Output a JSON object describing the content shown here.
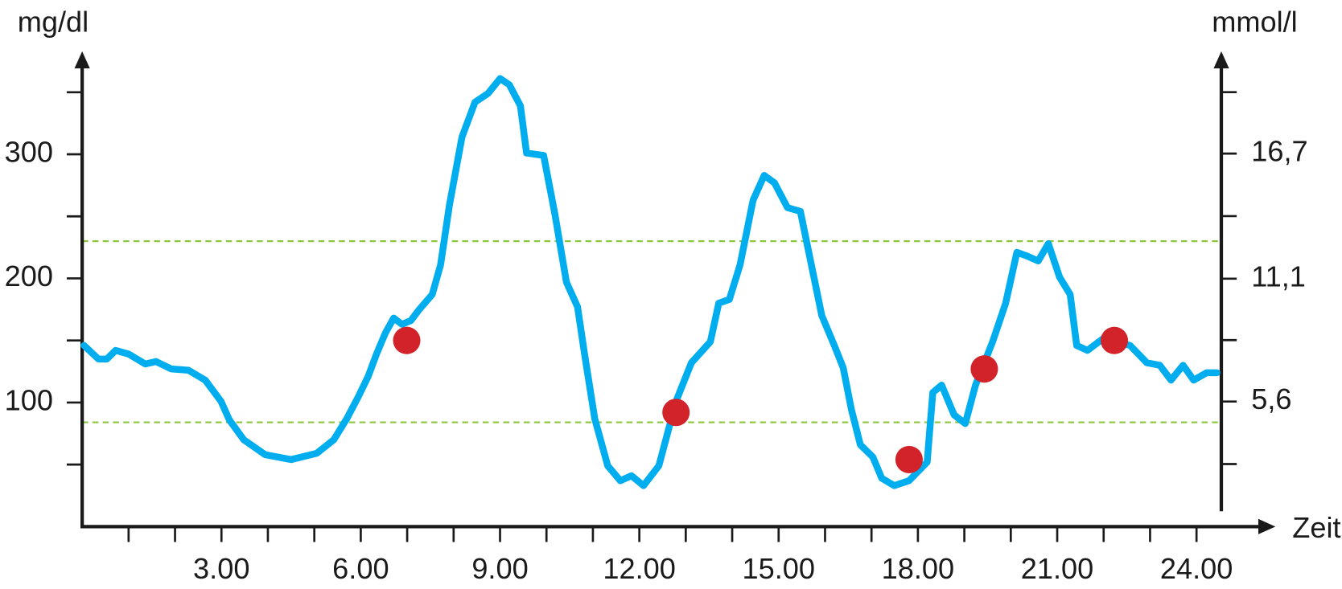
{
  "chart_data": {
    "type": "line",
    "y_label": "mg/dl",
    "y2_label": "mmol/l",
    "x_label": "Zeit",
    "xlim": [
      0,
      25.7
    ],
    "xticks": [
      {
        "value": 3,
        "label": "3.00"
      },
      {
        "value": 6,
        "label": "6.00"
      },
      {
        "value": 9,
        "label": "9.00"
      },
      {
        "value": 12,
        "label": "12.00"
      },
      {
        "value": 15,
        "label": "15.00"
      },
      {
        "value": 18,
        "label": "18.00"
      },
      {
        "value": 21,
        "label": "21.00"
      },
      {
        "value": 24,
        "label": "24.00"
      }
    ],
    "xminor_ticks": [
      1,
      2,
      4,
      5,
      7,
      8,
      10,
      11,
      13,
      14,
      16,
      17,
      19,
      20,
      22,
      23
    ],
    "ylim": [
      0,
      383
    ],
    "yticks": [
      100,
      200,
      300
    ],
    "yminor_ticks": [
      50,
      150,
      250,
      350
    ],
    "y2lim": [
      0,
      21.28
    ],
    "y2ticks": [
      {
        "value": 5.6,
        "label": "5,6"
      },
      {
        "value": 11.1,
        "label": "11,1"
      },
      {
        "value": 16.7,
        "label": "16,7"
      }
    ],
    "y2minor_ticks": [
      2.8,
      8.35,
      13.9,
      19.45
    ],
    "hlines": [
      230,
      84
    ],
    "hline_color": "#8dc63f",
    "axis_color": "#1a1a1a",
    "series": [
      {
        "style": "line",
        "color": "#00aeef",
        "x": [
          0.04,
          0.35,
          0.53,
          0.72,
          1.0,
          1.36,
          1.59,
          1.92,
          2.29,
          2.65,
          2.99,
          3.17,
          3.48,
          3.94,
          4.5,
          5.05,
          5.42,
          5.7,
          5.94,
          6.16,
          6.34,
          6.53,
          6.71,
          6.89,
          7.08,
          7.26,
          7.54,
          7.72,
          7.91,
          8.18,
          8.46,
          8.74,
          9.0,
          9.2,
          9.44,
          9.57,
          9.94,
          10.18,
          10.43,
          10.67,
          10.82,
          11.04,
          11.32,
          11.59,
          11.83,
          12.09,
          12.42,
          12.79,
          13.12,
          13.53,
          13.71,
          13.94,
          14.17,
          14.45,
          14.69,
          14.91,
          15.19,
          15.47,
          15.65,
          15.93,
          16.2,
          16.39,
          16.57,
          16.76,
          17.03,
          17.22,
          17.49,
          17.81,
          18.2,
          18.32,
          18.51,
          18.78,
          19.02,
          19.24,
          19.61,
          19.89,
          20.13,
          20.35,
          20.59,
          20.81,
          21.05,
          21.28,
          21.42,
          21.65,
          22.01,
          22.57,
          22.93,
          23.21,
          23.45,
          23.71,
          23.94,
          24.22,
          24.44
        ],
        "values": [
          146,
          135,
          135,
          142,
          139,
          131,
          133,
          127,
          126,
          118,
          101,
          86,
          70,
          58,
          54,
          59,
          70,
          87,
          104,
          121,
          139,
          156,
          168,
          163,
          166,
          175,
          187,
          211,
          259,
          314,
          342,
          349,
          361,
          356,
          339,
          301,
          299,
          252,
          197,
          177,
          139,
          87,
          49,
          37,
          41,
          33,
          49,
          101,
          132,
          149,
          180,
          183,
          211,
          263,
          283,
          277,
          257,
          254,
          221,
          170,
          146,
          128,
          94,
          66,
          56,
          39,
          33,
          37,
          52,
          108,
          114,
          90,
          83,
          114,
          149,
          180,
          221,
          218,
          214,
          228,
          201,
          187,
          146,
          142,
          152,
          146,
          132,
          130,
          118,
          130,
          118,
          124,
          124
        ]
      },
      {
        "style": "markers",
        "color": "#d2232a",
        "x": [
          6.99,
          12.79,
          17.81,
          19.43,
          22.23
        ],
        "values": [
          150,
          92,
          54,
          127,
          150
        ]
      }
    ]
  }
}
